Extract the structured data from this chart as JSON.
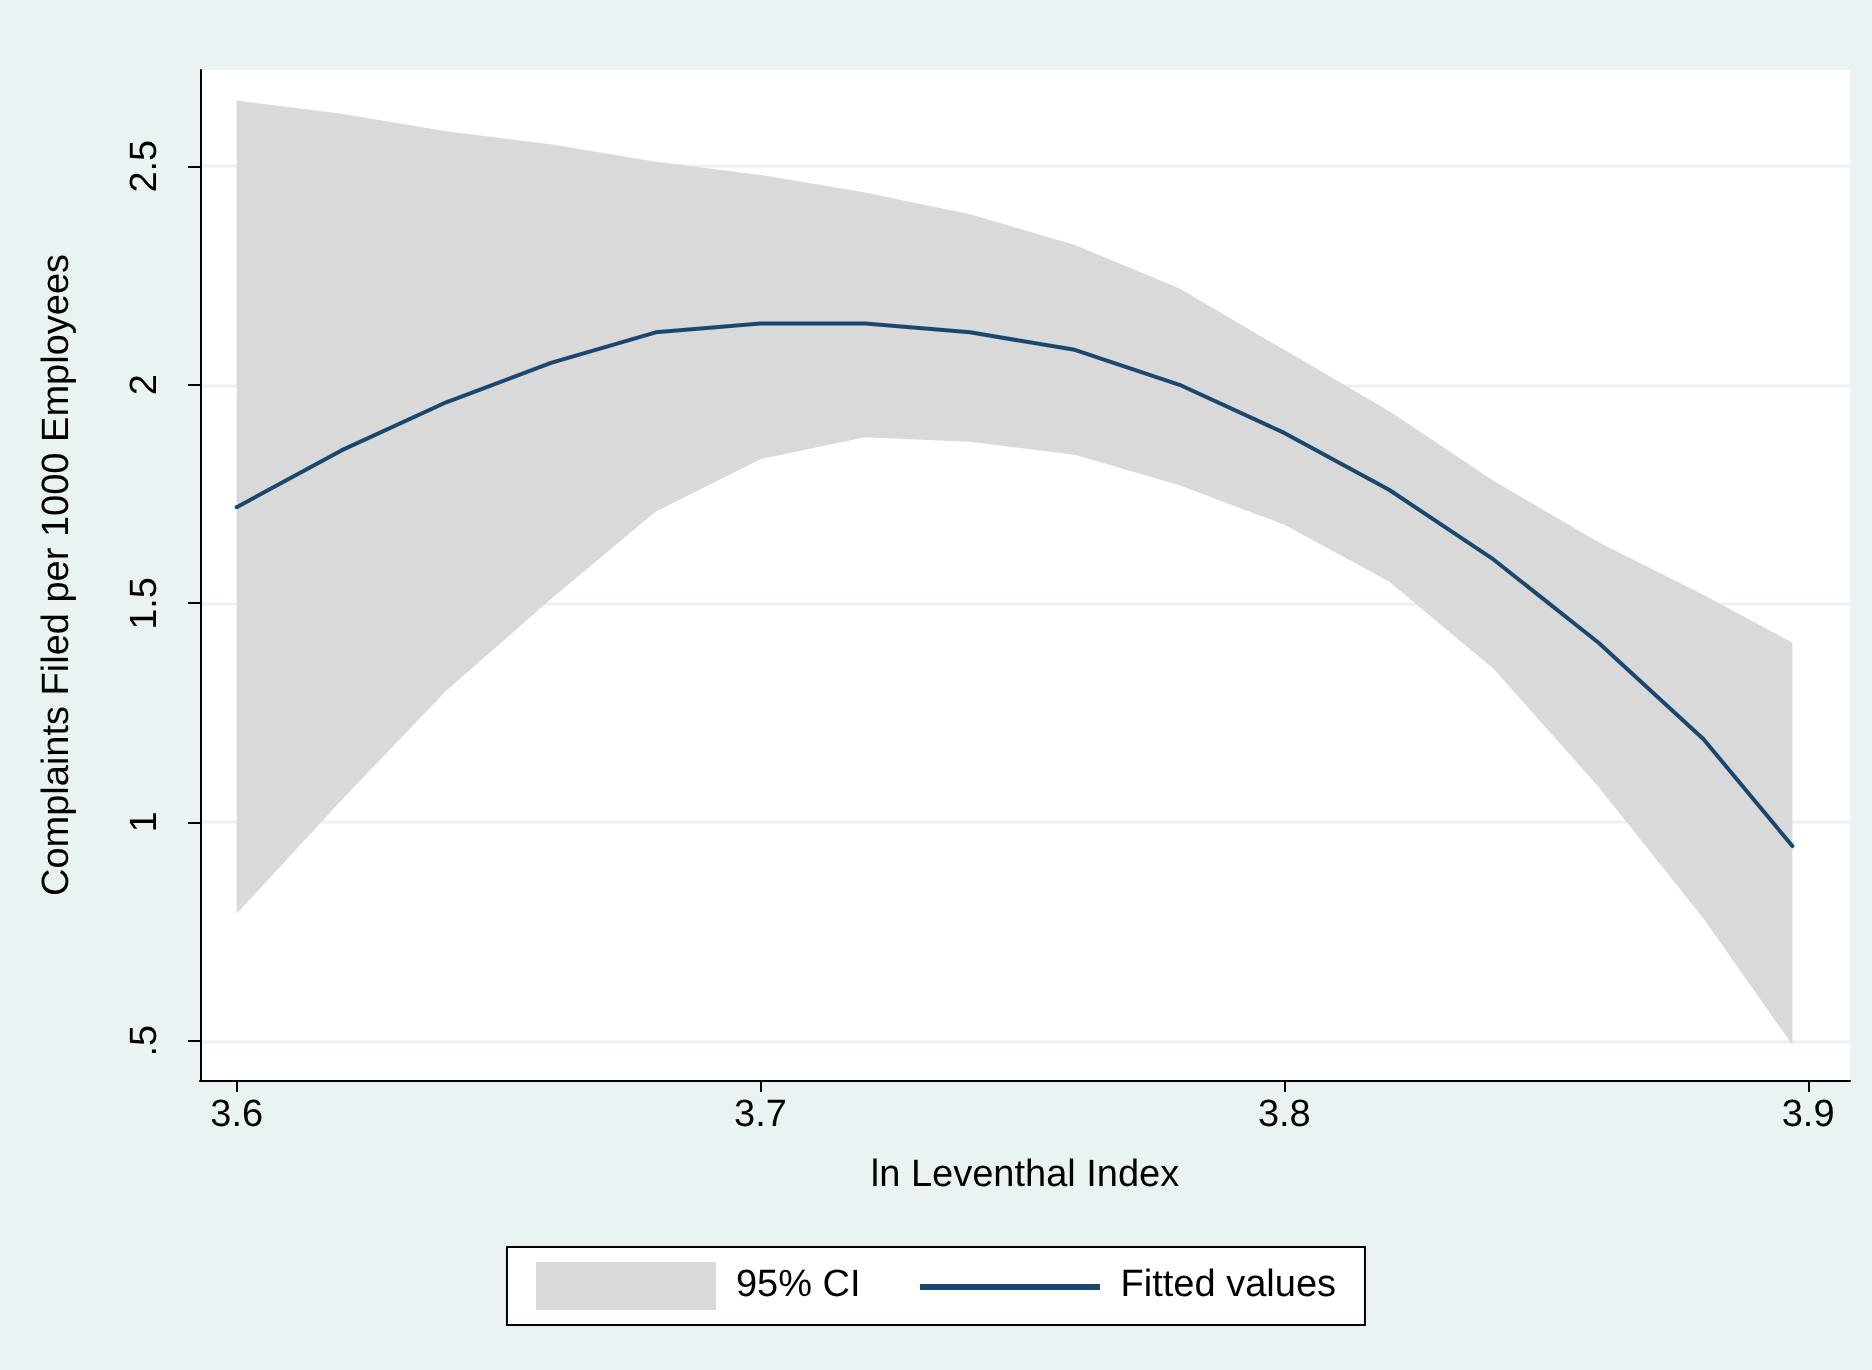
{
  "chart_data": {
    "type": "line",
    "xlabel": "ln Leventhal Index",
    "ylabel": "Complaints Filed per 1000 Employees",
    "x": [
      3.6,
      3.62,
      3.64,
      3.66,
      3.68,
      3.7,
      3.72,
      3.74,
      3.76,
      3.78,
      3.8,
      3.82,
      3.84,
      3.86,
      3.88,
      3.897
    ],
    "series": [
      {
        "name": "Fitted values",
        "color": "#1a476f",
        "values": [
          1.72,
          1.85,
          1.96,
          2.05,
          2.12,
          2.14,
          2.14,
          2.12,
          2.08,
          2.0,
          1.89,
          1.76,
          1.6,
          1.41,
          1.19,
          0.945
        ],
        "lower": [
          0.79,
          1.05,
          1.3,
          1.51,
          1.71,
          1.83,
          1.88,
          1.87,
          1.84,
          1.77,
          1.68,
          1.55,
          1.35,
          1.08,
          0.78,
          0.49
        ],
        "upper": [
          2.65,
          2.62,
          2.58,
          2.55,
          2.51,
          2.48,
          2.44,
          2.39,
          2.32,
          2.22,
          2.08,
          1.94,
          1.78,
          1.64,
          1.52,
          1.41
        ]
      }
    ],
    "annotations": [
      "95% CI"
    ],
    "xlim": [
      3.593,
      3.908
    ],
    "xticks": [
      3.6,
      3.7,
      3.8,
      3.9
    ],
    "ylim": [
      0.41,
      2.72
    ],
    "yticks": [
      {
        "value": 0.5,
        "label": ".5"
      },
      1,
      1.5,
      2,
      2.5
    ],
    "grid": "y",
    "legend": "bottom",
    "marker": "none",
    "line_style": "solid"
  }
}
